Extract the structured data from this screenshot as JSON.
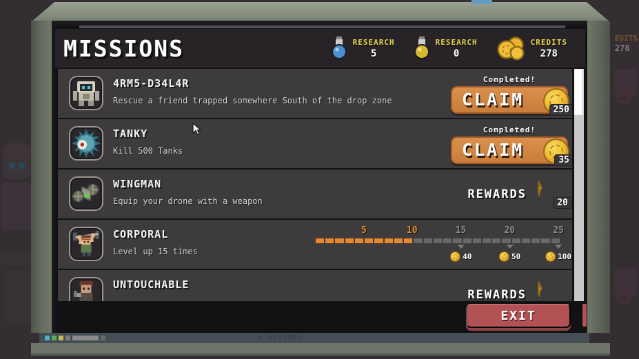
{
  "title": "MISSIONS",
  "header": {
    "currencies": [
      {
        "icon": "research-potion-blue-icon",
        "label": "RESEARCH",
        "value": "5"
      },
      {
        "icon": "research-potion-yellow-icon",
        "label": "RESEARCH",
        "value": "0"
      },
      {
        "icon": "credits-coins-icon",
        "label": "CREDITS",
        "value": "278"
      }
    ]
  },
  "missions": [
    {
      "title": "4RM5-D34L4R",
      "description": "Rescue a friend trapped somewhere South of the drop zone",
      "icon": "robot",
      "status": "Completed!",
      "action_label": "CLAIM",
      "reward_credits": "250"
    },
    {
      "title": "TANKY",
      "description": "Kill 500 Tanks",
      "icon": "tank-creature",
      "status": "Completed!",
      "action_label": "CLAIM",
      "reward_credits": "35"
    },
    {
      "title": "WINGMAN",
      "description": "Equip your drone with a weapon",
      "icon": "drone",
      "rewards_label": "REWARDS",
      "reward_credits": "20"
    },
    {
      "title": "CORPORAL",
      "description": "Level up 15 times",
      "icon": "weightlifter",
      "progress": {
        "current": 10,
        "max": 25,
        "tick_labels": [
          {
            "value": 5,
            "reached": true
          },
          {
            "value": 10,
            "reached": true
          },
          {
            "value": 15,
            "reached": false
          },
          {
            "value": 20,
            "reached": false
          },
          {
            "value": 25,
            "reached": false
          }
        ],
        "milestone_rewards": [
          {
            "at": 15,
            "credits": "40"
          },
          {
            "at": 20,
            "credits": "50"
          },
          {
            "at": 25,
            "credits": "100"
          }
        ]
      }
    },
    {
      "title": "UNTOUCHABLE",
      "icon": "untouchable-character",
      "rewards_label": "REWARDS"
    }
  ],
  "footer": {
    "exit_label": "EXIT"
  },
  "monitor": {
    "brand_text": "⚙ 5IV3RPC"
  },
  "background_hud": {
    "credits_label_partial": "EDITS",
    "credits_value": "278"
  },
  "colors": {
    "claim_orange": "#cf833f",
    "label_yellow": "#e5d04f",
    "exit_red": "#b25254",
    "progress_filled": "#e8882c",
    "progress_empty": "#69676b",
    "coin_gold": "#f0be38"
  }
}
